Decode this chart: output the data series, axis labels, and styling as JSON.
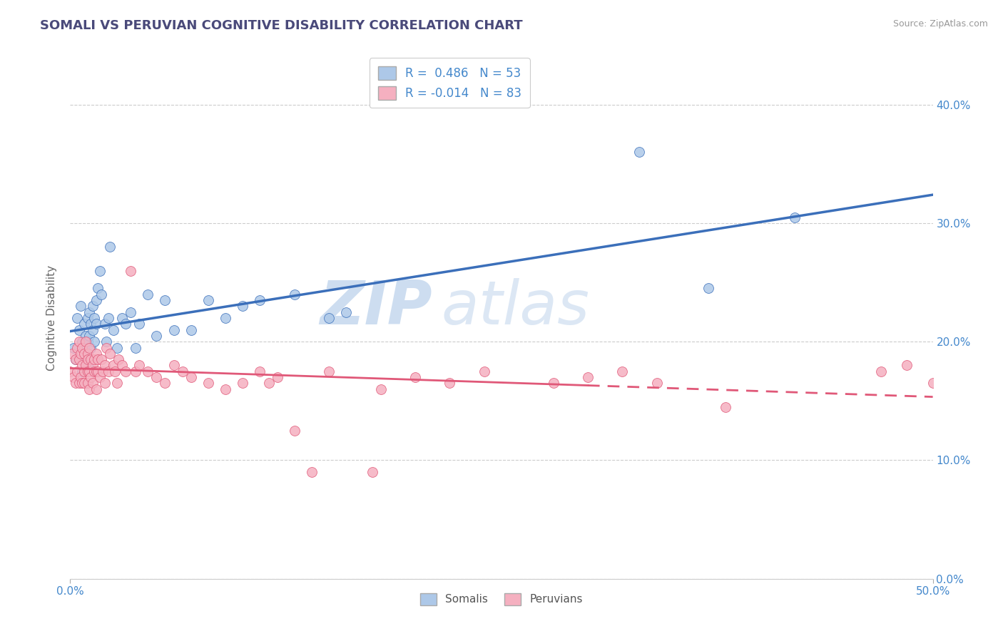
{
  "title": "SOMALI VS PERUVIAN COGNITIVE DISABILITY CORRELATION CHART",
  "source": "Source: ZipAtlas.com",
  "ylabel": "Cognitive Disability",
  "ytick_values": [
    0.0,
    0.1,
    0.2,
    0.3,
    0.4
  ],
  "xmin": 0.0,
  "xmax": 0.5,
  "ymin": 0.0,
  "ymax": 0.44,
  "somali_R": 0.486,
  "somali_N": 53,
  "peruvian_R": -0.014,
  "peruvian_N": 83,
  "somali_color": "#adc8e8",
  "somali_line_color": "#3b6fba",
  "peruvian_color": "#f5b0c0",
  "peruvian_line_color": "#e05878",
  "watermark_zip": "ZIP",
  "watermark_atlas": "atlas",
  "background_color": "#ffffff",
  "grid_color": "#cccccc",
  "title_color": "#4a4a7a",
  "axis_label_color": "#4488cc",
  "somali_x": [
    0.002,
    0.003,
    0.004,
    0.005,
    0.006,
    0.007,
    0.007,
    0.008,
    0.008,
    0.009,
    0.009,
    0.01,
    0.01,
    0.01,
    0.011,
    0.011,
    0.012,
    0.012,
    0.013,
    0.013,
    0.014,
    0.014,
    0.015,
    0.015,
    0.016,
    0.017,
    0.018,
    0.02,
    0.021,
    0.022,
    0.023,
    0.025,
    0.027,
    0.03,
    0.032,
    0.035,
    0.038,
    0.04,
    0.045,
    0.05,
    0.055,
    0.06,
    0.07,
    0.08,
    0.09,
    0.1,
    0.11,
    0.13,
    0.15,
    0.16,
    0.33,
    0.37,
    0.42
  ],
  "somali_y": [
    0.195,
    0.185,
    0.22,
    0.21,
    0.23,
    0.2,
    0.175,
    0.215,
    0.195,
    0.205,
    0.185,
    0.22,
    0.2,
    0.18,
    0.225,
    0.205,
    0.195,
    0.215,
    0.23,
    0.21,
    0.2,
    0.22,
    0.235,
    0.215,
    0.245,
    0.26,
    0.24,
    0.215,
    0.2,
    0.22,
    0.28,
    0.21,
    0.195,
    0.22,
    0.215,
    0.225,
    0.195,
    0.215,
    0.24,
    0.205,
    0.235,
    0.21,
    0.21,
    0.235,
    0.22,
    0.23,
    0.235,
    0.24,
    0.22,
    0.225,
    0.36,
    0.245,
    0.305
  ],
  "peruvian_x": [
    0.0,
    0.001,
    0.002,
    0.003,
    0.003,
    0.004,
    0.004,
    0.005,
    0.005,
    0.005,
    0.006,
    0.006,
    0.007,
    0.007,
    0.007,
    0.008,
    0.008,
    0.008,
    0.009,
    0.009,
    0.01,
    0.01,
    0.01,
    0.01,
    0.011,
    0.011,
    0.011,
    0.012,
    0.012,
    0.013,
    0.013,
    0.014,
    0.014,
    0.015,
    0.015,
    0.015,
    0.016,
    0.016,
    0.017,
    0.018,
    0.019,
    0.02,
    0.02,
    0.021,
    0.022,
    0.023,
    0.025,
    0.026,
    0.027,
    0.028,
    0.03,
    0.032,
    0.035,
    0.038,
    0.04,
    0.045,
    0.05,
    0.055,
    0.06,
    0.065,
    0.07,
    0.08,
    0.09,
    0.1,
    0.11,
    0.115,
    0.12,
    0.13,
    0.14,
    0.15,
    0.175,
    0.18,
    0.2,
    0.22,
    0.24,
    0.28,
    0.3,
    0.32,
    0.34,
    0.38,
    0.47,
    0.485,
    0.5
  ],
  "peruvian_y": [
    0.175,
    0.19,
    0.17,
    0.185,
    0.165,
    0.175,
    0.195,
    0.185,
    0.165,
    0.2,
    0.17,
    0.19,
    0.18,
    0.165,
    0.195,
    0.175,
    0.19,
    0.165,
    0.18,
    0.2,
    0.175,
    0.19,
    0.165,
    0.185,
    0.175,
    0.195,
    0.16,
    0.185,
    0.17,
    0.18,
    0.165,
    0.185,
    0.175,
    0.19,
    0.175,
    0.16,
    0.185,
    0.175,
    0.17,
    0.185,
    0.175,
    0.18,
    0.165,
    0.195,
    0.175,
    0.19,
    0.18,
    0.175,
    0.165,
    0.185,
    0.18,
    0.175,
    0.26,
    0.175,
    0.18,
    0.175,
    0.17,
    0.165,
    0.18,
    0.175,
    0.17,
    0.165,
    0.16,
    0.165,
    0.175,
    0.165,
    0.17,
    0.125,
    0.09,
    0.175,
    0.09,
    0.16,
    0.17,
    0.165,
    0.175,
    0.165,
    0.17,
    0.175,
    0.165,
    0.145,
    0.175,
    0.18,
    0.165
  ]
}
